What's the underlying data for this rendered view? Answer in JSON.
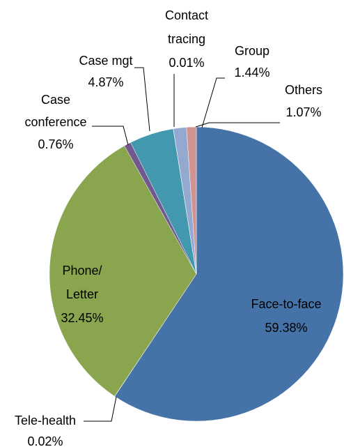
{
  "chart_data": {
    "type": "pie",
    "categories": [
      "Face-to-face",
      "Tele-health",
      "Phone/ Letter",
      "Case conference",
      "Case mgt",
      "Contact tracing",
      "Group",
      "Others"
    ],
    "values": [
      59.38,
      0.02,
      32.45,
      0.76,
      4.87,
      0.01,
      1.44,
      1.07
    ],
    "value_labels": [
      "59.38%",
      "0.02%",
      "32.45%",
      "0.76%",
      "4.87%",
      "0.01%",
      "1.44%",
      "1.07%"
    ],
    "colors": [
      "#4572a7",
      "#aa4643",
      "#89a54e",
      "#71588f",
      "#4198af",
      "#db843d",
      "#93a9cf",
      "#d19392"
    ]
  }
}
